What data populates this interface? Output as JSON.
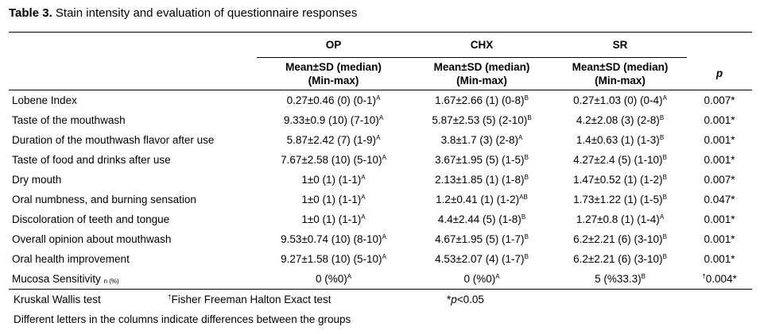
{
  "caption": {
    "label": "Table 3.",
    "text": " Stain intensity and evaluation of questionnaire responses"
  },
  "header": {
    "groups": [
      "OP",
      "CHX",
      "SR"
    ],
    "sub_line1": "Mean±SD (median)",
    "sub_line2": "(Min-max)",
    "p_label": "p"
  },
  "rows": [
    {
      "label": "Lobene Index",
      "label_sub": "",
      "op": "0.27±0.46 (0) (0-1)",
      "op_sup": "A",
      "chx": "1.67±2.66 (1) (0-8)",
      "chx_sup": "B",
      "sr": "0.27±1.03 (0) (0-4)",
      "sr_sup": "A",
      "p_pre": "",
      "p": "0.007*"
    },
    {
      "label": "Taste of the mouthwash",
      "label_sub": "",
      "op": "9.33±0.9 (10) (7-10)",
      "op_sup": "A",
      "chx": "5.87±2.53 (5) (2-10)",
      "chx_sup": "B",
      "sr": "4.2±2.08 (3) (2-8)",
      "sr_sup": "B",
      "p_pre": "",
      "p": "0.001*"
    },
    {
      "label": "Duration of the mouthwash flavor after use",
      "label_sub": "",
      "op": "5.87±2.42 (7) (1-9)",
      "op_sup": "A",
      "chx": "3.8±1.7 (3) (2-8)",
      "chx_sup": "A",
      "sr": "1.4±0.63 (1) (1-3)",
      "sr_sup": "B",
      "p_pre": "",
      "p": "0.001*"
    },
    {
      "label": "Taste of food and drinks after use",
      "label_sub": "",
      "op": "7.67±2.58 (10) (5-10)",
      "op_sup": "A",
      "chx": "3.67±1.95 (5) (1-5)",
      "chx_sup": "B",
      "sr": "4.27±2.4 (5) (1-10)",
      "sr_sup": "B",
      "p_pre": "",
      "p": "0.001*"
    },
    {
      "label": "Dry mouth",
      "label_sub": "",
      "op": "1±0 (1) (1-1)",
      "op_sup": "A",
      "chx": "2.13±1.85 (1) (1-8)",
      "chx_sup": "B",
      "sr": "1.47±0.52 (1) (1-2)",
      "sr_sup": "B",
      "p_pre": "",
      "p": "0.007*"
    },
    {
      "label": "Oral numbness, and burning sensation",
      "label_sub": "",
      "op": "1±0 (1) (1-1)",
      "op_sup": "A",
      "chx": "1.2±0.41 (1) (1-2)",
      "chx_sup": "AB",
      "sr": "1.73±1.22 (1) (1-5)",
      "sr_sup": "B",
      "p_pre": "",
      "p": "0.047*"
    },
    {
      "label": "Discoloration of teeth and tongue",
      "label_sub": "",
      "op": "1±0 (1) (1-1)",
      "op_sup": "A",
      "chx": "4.4±2.44 (5) (1-8)",
      "chx_sup": "B",
      "sr": "1.27±0.8 (1) (1-4)",
      "sr_sup": "A",
      "p_pre": "",
      "p": "0.001*"
    },
    {
      "label": "Overall opinion about mouthwash",
      "label_sub": "",
      "op": "9.53±0.74 (10) (8-10)",
      "op_sup": "A",
      "chx": "4.67±1.95 (5) (1-7)",
      "chx_sup": "B",
      "sr": "6.2±2.21 (6) (3-10)",
      "sr_sup": "B",
      "p_pre": "",
      "p": "0.001*"
    },
    {
      "label": "Oral health improvement",
      "label_sub": "",
      "op": "9.27±1.58 (10) (5-10)",
      "op_sup": "A",
      "chx": "4.53±2.07 (4) (1-7)",
      "chx_sup": "B",
      "sr": "6.2±2.21 (6) (3-10)",
      "sr_sup": "B",
      "p_pre": "",
      "p": "0.001*"
    },
    {
      "label": "Mucosa Sensitivity",
      "label_sub": "n (%)",
      "op": "0 (%0)",
      "op_sup": "A",
      "chx": "0 (%0)",
      "chx_sup": "A",
      "sr": "5 (%33.3)",
      "sr_sup": "B",
      "p_pre": "†",
      "p": "0.004*"
    }
  ],
  "footnotes": {
    "kruskal": "Kruskal Wallis test",
    "fisher_mark": "†",
    "fisher": "Fisher Freeman Halton Exact test",
    "sig_mark": "*",
    "sig_p": "p",
    "sig_rest": "<0.05",
    "letters": "Different letters in the columns indicate differences between the groups"
  }
}
